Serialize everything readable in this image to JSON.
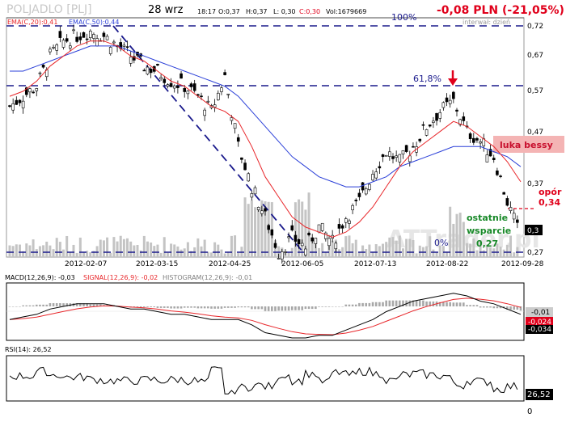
{
  "header": {
    "ticker": "POLJADLO [PLJ]",
    "date": "28 wrz",
    "time": "18:17",
    "open": "O:0,37",
    "high": "H:0,37",
    "low": "L: 0,30",
    "close": "C:0,30",
    "volume": "Vol:1679669",
    "change": "-0,08 PLN (-21,05%)",
    "interval": "interwał: dzień"
  },
  "main_legend": {
    "ema20": "EMA(C,20):0,41",
    "ema50": "EMA(C,50):0,44"
  },
  "fib": {
    "level_100": "100%",
    "level_618": "61,8%",
    "level_0": "0%"
  },
  "annotations": {
    "gap": "luka bessy",
    "resistance_label": "opór",
    "resistance_value": "0,34",
    "support_label_1": "ostatnie",
    "support_label_2": "wsparcie",
    "support_value": "0,27",
    "last_price": "0,3"
  },
  "watermark": "ATTrader.pl",
  "macd": {
    "label_macd": "MACD(12,26,9): -0,03",
    "label_signal": "SIGNAL(12,26,9): -0,02",
    "label_hist": "HISTOGRAM(12,26,9): -0,01",
    "tag_hist": "-0,01",
    "tag_signal": "-0,024",
    "tag_macd": "-0,034"
  },
  "rsi": {
    "label": "RSI(14): 26,52",
    "tag": "26,52",
    "axis_bottom": "0"
  },
  "colors": {
    "ema20": "#e8262a",
    "ema50": "#2a3fd8",
    "fib_line": "#1a1a8c",
    "price": "#000000",
    "volume": "#b8b8b8",
    "gap_fill": "#f4b4b4",
    "gap_text": "#c8102e",
    "support_text": "#1a8a2a",
    "change_text": "#e0001b"
  },
  "chart_data": {
    "type": "line",
    "title": "POLJADLO [PLJ]",
    "xlabel": "",
    "ylabel": "",
    "ylim": [
      0.27,
      0.72
    ],
    "x_ticks": [
      "2012-02-07",
      "2012-03-15",
      "2012-04-25",
      "2012-06-05",
      "2012-07-13",
      "2012-08-22",
      "2012-09-28"
    ],
    "y_ticks": [
      "0,72",
      "0,67",
      "0,57",
      "0,47",
      "0,37",
      "0,27"
    ],
    "x": [
      "2012-01-02",
      "2012-01-09",
      "2012-01-16",
      "2012-01-23",
      "2012-01-30",
      "2012-02-07",
      "2012-02-14",
      "2012-02-21",
      "2012-02-28",
      "2012-03-06",
      "2012-03-15",
      "2012-03-22",
      "2012-03-29",
      "2012-04-05",
      "2012-04-12",
      "2012-04-19",
      "2012-04-25",
      "2012-05-02",
      "2012-05-09",
      "2012-05-16",
      "2012-05-23",
      "2012-05-30",
      "2012-06-05",
      "2012-06-12",
      "2012-06-19",
      "2012-06-26",
      "2012-07-03",
      "2012-07-13",
      "2012-07-20",
      "2012-07-27",
      "2012-08-03",
      "2012-08-10",
      "2012-08-17",
      "2012-08-22",
      "2012-08-29",
      "2012-09-05",
      "2012-09-12",
      "2012-09-19",
      "2012-09-28"
    ],
    "series": [
      {
        "name": "EMA(C,20)",
        "values": [
          0.58,
          0.59,
          0.61,
          0.64,
          0.66,
          0.68,
          0.69,
          0.69,
          0.68,
          0.66,
          0.65,
          0.63,
          0.61,
          0.6,
          0.58,
          0.56,
          0.55,
          0.53,
          0.48,
          0.42,
          0.38,
          0.34,
          0.32,
          0.31,
          0.3,
          0.31,
          0.33,
          0.36,
          0.4,
          0.44,
          0.47,
          0.49,
          0.51,
          0.53,
          0.52,
          0.5,
          0.48,
          0.45,
          0.41
        ]
      },
      {
        "name": "EMA(C,50)",
        "values": [
          0.63,
          0.63,
          0.64,
          0.65,
          0.66,
          0.67,
          0.68,
          0.68,
          0.68,
          0.67,
          0.66,
          0.65,
          0.64,
          0.63,
          0.62,
          0.61,
          0.6,
          0.58,
          0.55,
          0.52,
          0.49,
          0.46,
          0.44,
          0.42,
          0.41,
          0.4,
          0.4,
          0.41,
          0.42,
          0.44,
          0.45,
          0.46,
          0.47,
          0.48,
          0.48,
          0.48,
          0.47,
          0.46,
          0.44
        ]
      },
      {
        "name": "Close",
        "values": [
          0.56,
          0.58,
          0.6,
          0.66,
          0.69,
          0.7,
          0.71,
          0.7,
          0.68,
          0.66,
          0.64,
          0.63,
          0.61,
          0.6,
          0.58,
          0.55,
          0.62,
          0.48,
          0.4,
          0.34,
          0.27,
          0.3,
          0.28,
          0.32,
          0.29,
          0.34,
          0.37,
          0.43,
          0.47,
          0.45,
          0.48,
          0.52,
          0.55,
          0.57,
          0.51,
          0.49,
          0.46,
          0.37,
          0.3
        ]
      }
    ],
    "annotations": [
      "100%",
      "61,8%",
      "0%",
      "luka bessy",
      "opór 0,34",
      "ostatnie wsparcie 0,27"
    ]
  }
}
